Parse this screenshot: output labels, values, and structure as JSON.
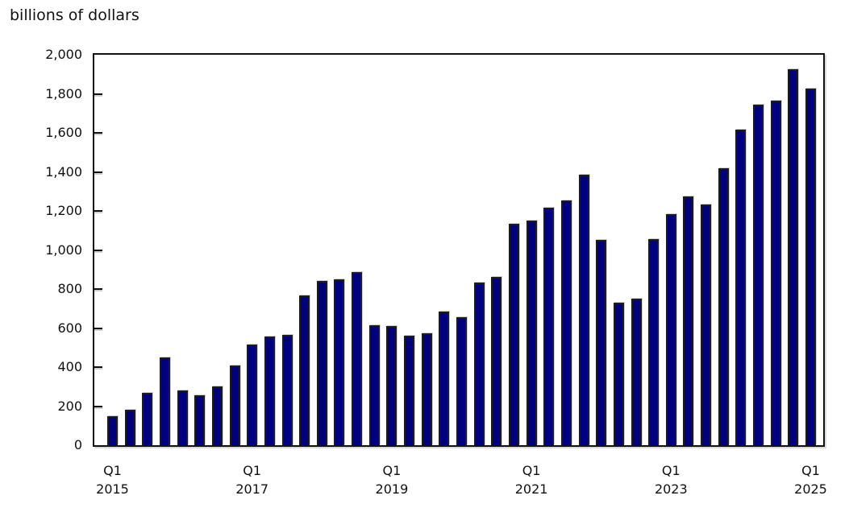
{
  "title": "billions of dollars",
  "colors": {
    "bar_fill": "#000080",
    "bar_border": "#1c1c1c",
    "axis": "#111111",
    "background": "#ffffff"
  },
  "chart_data": {
    "type": "bar",
    "title": "billions of dollars",
    "xlabel": "",
    "ylabel": "billions of dollars",
    "ylim": [
      0,
      2000
    ],
    "ytick_step": 200,
    "grid": false,
    "legend": null,
    "y_tick_labels": [
      "0",
      "200",
      "400",
      "600",
      "800",
      "1,000",
      "1,200",
      "1,400",
      "1,600",
      "1,800",
      "2,000"
    ],
    "categories": [
      "2015 Q1",
      "2015 Q2",
      "2015 Q3",
      "2015 Q4",
      "2016 Q1",
      "2016 Q2",
      "2016 Q3",
      "2016 Q4",
      "2017 Q1",
      "2017 Q2",
      "2017 Q3",
      "2017 Q4",
      "2018 Q1",
      "2018 Q2",
      "2018 Q3",
      "2018 Q4",
      "2019 Q1",
      "2019 Q2",
      "2019 Q3",
      "2019 Q4",
      "2020 Q1",
      "2020 Q2",
      "2020 Q3",
      "2020 Q4",
      "2021 Q1",
      "2021 Q2",
      "2021 Q3",
      "2021 Q4",
      "2022 Q1",
      "2022 Q2",
      "2022 Q3",
      "2022 Q4",
      "2023 Q1",
      "2023 Q2",
      "2023 Q3",
      "2023 Q4",
      "2024 Q1",
      "2024 Q2",
      "2024 Q3",
      "2024 Q4",
      "2025 Q1"
    ],
    "values": [
      150,
      180,
      270,
      450,
      280,
      255,
      300,
      410,
      515,
      555,
      565,
      765,
      840,
      850,
      885,
      615,
      610,
      560,
      575,
      685,
      655,
      835,
      860,
      1135,
      1150,
      1215,
      1255,
      1385,
      1050,
      730,
      750,
      1055,
      1185,
      1275,
      1235,
      1420,
      1615,
      1745,
      1765,
      1925,
      1825
    ],
    "x_axis_ticks": [
      {
        "index": 0,
        "quarter": "Q1",
        "year": "2015"
      },
      {
        "index": 8,
        "quarter": "Q1",
        "year": "2017"
      },
      {
        "index": 16,
        "quarter": "Q1",
        "year": "2019"
      },
      {
        "index": 24,
        "quarter": "Q1",
        "year": "2021"
      },
      {
        "index": 32,
        "quarter": "Q1",
        "year": "2023"
      },
      {
        "index": 40,
        "quarter": "Q1",
        "year": "2025"
      }
    ]
  }
}
